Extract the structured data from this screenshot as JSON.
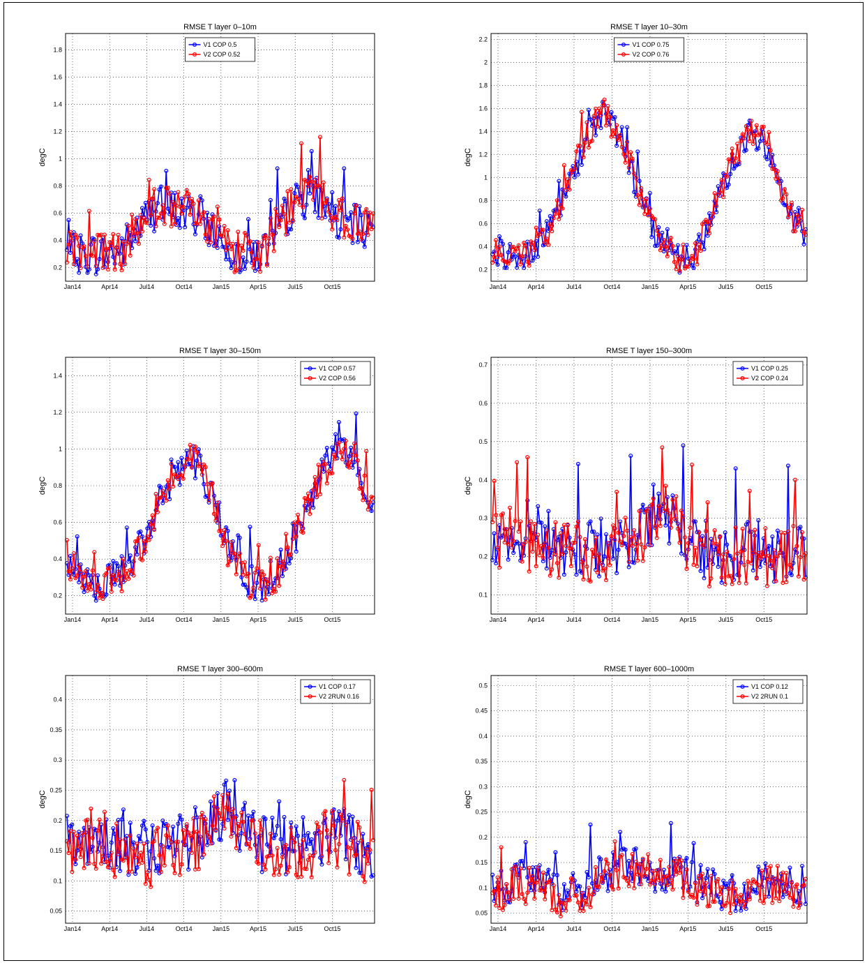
{
  "chart_data": [
    {
      "type": "line",
      "title": "RMSE T layer 0–10m",
      "ylabel": "degC",
      "x_tick_labels": [
        "Jan14",
        "Apr14",
        "Jul14",
        "Oct14",
        "Jan15",
        "Apr15",
        "Jul15",
        "Oct15"
      ],
      "ylim": [
        0.1,
        1.92
      ],
      "yticks": [
        0.2,
        0.4,
        0.6,
        0.8,
        1,
        1.2,
        1.4,
        1.6,
        1.8
      ],
      "grid": true,
      "legend_position": "top-center",
      "series": [
        {
          "name": "V1 COP 0.5",
          "color": "#0000ff",
          "envelope": [
            0.3,
            0.3,
            0.3,
            0.32,
            0.5,
            0.65,
            0.62,
            0.58,
            0.5,
            0.32,
            0.3,
            0.32,
            0.55,
            0.72,
            0.72,
            0.55,
            0.5,
            0.5
          ],
          "noise": 0.16
        },
        {
          "name": "V2 COP 0.52",
          "color": "#ff0000",
          "envelope": [
            0.31,
            0.31,
            0.31,
            0.33,
            0.52,
            0.67,
            0.64,
            0.6,
            0.52,
            0.33,
            0.31,
            0.33,
            0.57,
            0.75,
            0.74,
            0.57,
            0.52,
            0.52
          ],
          "noise": 0.16
        }
      ]
    },
    {
      "type": "line",
      "title": "RMSE T layer 10–30m",
      "ylabel": "degC",
      "x_tick_labels": [
        "Jan14",
        "Apr14",
        "Jul14",
        "Oct14",
        "Jan15",
        "Apr15",
        "Jul15",
        "Oct15"
      ],
      "ylim": [
        0.1,
        2.25
      ],
      "yticks": [
        0.2,
        0.4,
        0.6,
        0.8,
        1,
        1.2,
        1.4,
        1.6,
        1.8,
        2,
        2.2
      ],
      "grid": true,
      "legend_position": "top-center",
      "series": [
        {
          "name": "V1 COP 0.75",
          "color": "#0000ff",
          "envelope": [
            0.35,
            0.3,
            0.33,
            0.5,
            0.85,
            1.3,
            1.55,
            1.35,
            0.85,
            0.45,
            0.3,
            0.3,
            0.7,
            1.1,
            1.4,
            1.25,
            0.75,
            0.45
          ],
          "noise": 0.13
        },
        {
          "name": "V2 COP 0.76",
          "color": "#ff0000",
          "envelope": [
            0.36,
            0.31,
            0.34,
            0.51,
            0.86,
            1.32,
            1.57,
            1.37,
            0.86,
            0.46,
            0.31,
            0.31,
            0.71,
            1.12,
            1.42,
            1.27,
            0.76,
            0.46
          ],
          "noise": 0.13
        }
      ]
    },
    {
      "type": "line",
      "title": "RMSE T layer 30–150m",
      "ylabel": "degC",
      "x_tick_labels": [
        "Jan14",
        "Apr14",
        "Jul14",
        "Oct14",
        "Jan15",
        "Apr15",
        "Jul15",
        "Oct15"
      ],
      "ylim": [
        0.1,
        1.5
      ],
      "yticks": [
        0.2,
        0.4,
        0.6,
        0.8,
        1,
        1.2,
        1.4
      ],
      "grid": true,
      "legend_position": "top-right",
      "series": [
        {
          "name": "V1 COP 0.57",
          "color": "#0000ff",
          "envelope": [
            0.42,
            0.28,
            0.25,
            0.32,
            0.45,
            0.7,
            0.88,
            0.95,
            0.75,
            0.45,
            0.3,
            0.25,
            0.38,
            0.6,
            0.85,
            1.0,
            0.95,
            0.65
          ],
          "noise": 0.1
        },
        {
          "name": "V2 COP 0.56",
          "color": "#ff0000",
          "envelope": [
            0.41,
            0.27,
            0.24,
            0.31,
            0.44,
            0.69,
            0.87,
            0.94,
            0.74,
            0.44,
            0.29,
            0.24,
            0.37,
            0.59,
            0.84,
            0.99,
            0.94,
            0.64
          ],
          "noise": 0.1
        }
      ]
    },
    {
      "type": "line",
      "title": "RMSE T layer 150–300m",
      "ylabel": "degC",
      "x_tick_labels": [
        "Jan14",
        "Apr14",
        "Jul14",
        "Oct14",
        "Jan15",
        "Apr15",
        "Jul15",
        "Oct15"
      ],
      "ylim": [
        0.05,
        0.72
      ],
      "yticks": [
        0.1,
        0.2,
        0.3,
        0.4,
        0.5,
        0.6,
        0.7
      ],
      "grid": true,
      "legend_position": "top-right",
      "series": [
        {
          "name": "V1 COP 0.25",
          "color": "#0000ff",
          "envelope": [
            0.25,
            0.26,
            0.25,
            0.24,
            0.23,
            0.22,
            0.22,
            0.24,
            0.25,
            0.33,
            0.3,
            0.22,
            0.21,
            0.21,
            0.22,
            0.21,
            0.22,
            0.2
          ],
          "noise": 0.08
        },
        {
          "name": "V2 COP 0.24",
          "color": "#ff0000",
          "envelope": [
            0.24,
            0.25,
            0.24,
            0.23,
            0.22,
            0.21,
            0.21,
            0.23,
            0.24,
            0.32,
            0.29,
            0.21,
            0.2,
            0.2,
            0.21,
            0.2,
            0.21,
            0.19
          ],
          "noise": 0.08
        }
      ]
    },
    {
      "type": "line",
      "title": "RMSE T layer 300–600m",
      "ylabel": "degC",
      "x_tick_labels": [
        "Jan14",
        "Apr14",
        "Jul14",
        "Oct14",
        "Jan15",
        "Apr15",
        "Jul15",
        "Oct15"
      ],
      "ylim": [
        0.03,
        0.44
      ],
      "yticks": [
        0.05,
        0.1,
        0.15,
        0.2,
        0.25,
        0.3,
        0.35,
        0.4
      ],
      "grid": true,
      "legend_position": "top-right",
      "series": [
        {
          "name": "V1 COP 0.17",
          "color": "#0000ff",
          "envelope": [
            0.16,
            0.17,
            0.16,
            0.16,
            0.15,
            0.15,
            0.16,
            0.17,
            0.2,
            0.22,
            0.18,
            0.16,
            0.16,
            0.16,
            0.17,
            0.18,
            0.16,
            0.15
          ],
          "noise": 0.05
        },
        {
          "name": "V2 2RUN 0.16",
          "color": "#ff0000",
          "envelope": [
            0.15,
            0.16,
            0.15,
            0.15,
            0.14,
            0.14,
            0.15,
            0.16,
            0.19,
            0.21,
            0.17,
            0.15,
            0.15,
            0.15,
            0.16,
            0.17,
            0.15,
            0.14
          ],
          "noise": 0.05
        }
      ]
    },
    {
      "type": "line",
      "title": "RMSE T layer 600–1000m",
      "ylabel": "degC",
      "x_tick_labels": [
        "Jan14",
        "Apr14",
        "Jul14",
        "Oct14",
        "Jan15",
        "Apr15",
        "Jul15",
        "Oct15"
      ],
      "ylim": [
        0.03,
        0.52
      ],
      "yticks": [
        0.05,
        0.1,
        0.15,
        0.2,
        0.25,
        0.3,
        0.35,
        0.4,
        0.45,
        0.5
      ],
      "grid": true,
      "legend_position": "top-right",
      "series": [
        {
          "name": "V1 COP 0.12",
          "color": "#0000ff",
          "envelope": [
            0.1,
            0.11,
            0.12,
            0.1,
            0.09,
            0.1,
            0.13,
            0.14,
            0.14,
            0.13,
            0.13,
            0.11,
            0.1,
            0.09,
            0.1,
            0.12,
            0.11,
            0.09
          ],
          "noise": 0.04
        },
        {
          "name": "V2 2RUN 0.1",
          "color": "#ff0000",
          "envelope": [
            0.09,
            0.1,
            0.11,
            0.09,
            0.08,
            0.09,
            0.12,
            0.13,
            0.13,
            0.12,
            0.12,
            0.1,
            0.09,
            0.08,
            0.09,
            0.11,
            0.1,
            0.08
          ],
          "noise": 0.04
        }
      ]
    }
  ]
}
